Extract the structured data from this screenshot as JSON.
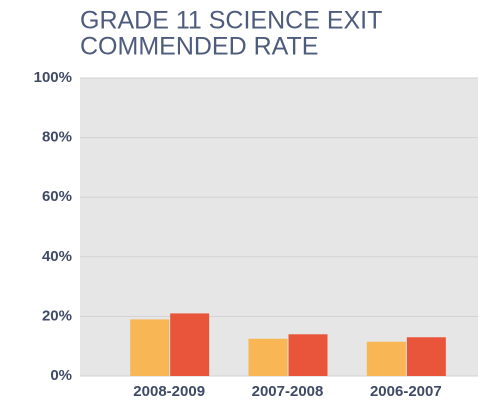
{
  "chart_data": {
    "type": "bar",
    "title": [
      "GRADE 11 SCIENCE EXIT",
      "COMMENDED RATE"
    ],
    "categories": [
      "2008-2009",
      "2007-2008",
      "2006-2007"
    ],
    "series": [
      {
        "color": "#f8b654",
        "values": [
          19,
          12.5,
          11.5
        ]
      },
      {
        "color": "#e9553a",
        "values": [
          21,
          14,
          13
        ]
      }
    ],
    "ylim": [
      0,
      100
    ],
    "yticks": [
      {
        "value": 0,
        "label": "0%"
      },
      {
        "value": 20,
        "label": "20%"
      },
      {
        "value": 40,
        "label": "40%"
      },
      {
        "value": 60,
        "label": "60%"
      },
      {
        "value": 80,
        "label": "80%"
      },
      {
        "value": 100,
        "label": "100%"
      }
    ],
    "grid": true
  }
}
